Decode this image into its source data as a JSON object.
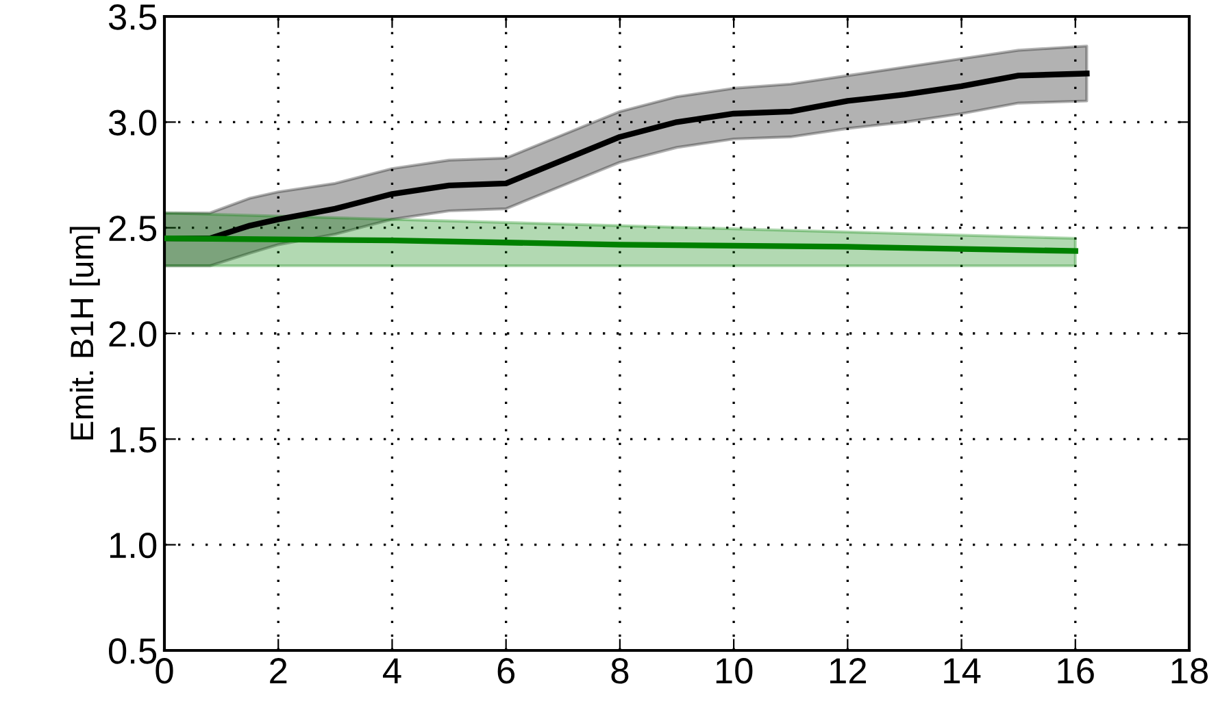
{
  "chart_data": {
    "type": "line",
    "ylabel": "Emit. B1H [um]",
    "xlim": [
      0,
      18
    ],
    "xticks": [
      0,
      2,
      4,
      6,
      8,
      10,
      12,
      14,
      16,
      18
    ],
    "ylim": [
      0.5,
      3.5
    ],
    "yticks": [
      {
        "value": 0.5,
        "label": "0.5"
      },
      {
        "value": 1.0,
        "label": "1.0"
      },
      {
        "value": 1.5,
        "label": "1.5"
      },
      {
        "value": 2.0,
        "label": "2.0"
      },
      {
        "value": 2.5,
        "label": "2.5"
      },
      {
        "value": 3.0,
        "label": "3.0"
      },
      {
        "value": 3.5,
        "label": "3.5"
      }
    ],
    "grid": true,
    "line_style": "solid",
    "marker": "none",
    "series": [
      {
        "color": "#000000",
        "x": [
          0,
          0.8,
          1.5,
          2,
          3,
          4,
          5,
          6,
          7,
          8,
          9,
          10,
          11,
          12,
          13,
          14,
          15,
          16.2
        ],
        "values": [
          2.45,
          2.45,
          2.51,
          2.54,
          2.59,
          2.66,
          2.7,
          2.71,
          2.82,
          2.93,
          3.0,
          3.04,
          3.05,
          3.1,
          3.13,
          3.17,
          3.22,
          3.23
        ],
        "lower": [
          2.32,
          2.32,
          2.38,
          2.42,
          2.47,
          2.54,
          2.58,
          2.59,
          2.7,
          2.81,
          2.88,
          2.92,
          2.93,
          2.97,
          3.0,
          3.04,
          3.09,
          3.1
        ],
        "upper": [
          2.57,
          2.57,
          2.64,
          2.67,
          2.71,
          2.78,
          2.82,
          2.83,
          2.94,
          3.05,
          3.12,
          3.16,
          3.18,
          3.22,
          3.26,
          3.3,
          3.34,
          3.36
        ]
      },
      {
        "color": "#008000",
        "x": [
          0,
          4,
          8,
          12,
          16
        ],
        "values": [
          2.45,
          2.44,
          2.42,
          2.41,
          2.39
        ],
        "lower": [
          2.32,
          2.32,
          2.32,
          2.32,
          2.32
        ],
        "upper": [
          2.57,
          2.54,
          2.51,
          2.48,
          2.45
        ]
      }
    ]
  }
}
